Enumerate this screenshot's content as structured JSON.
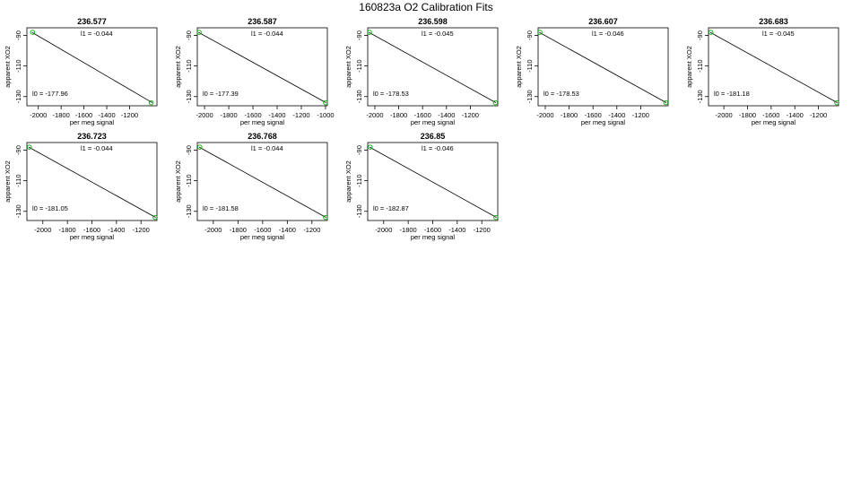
{
  "title": "160823a   O2 Calibration Fits",
  "chart_data": [
    {
      "type": "line",
      "title": "236.577",
      "xlabel": "per meg signal",
      "ylabel": "apparent XO2",
      "xlim": [
        -2100,
        -960
      ],
      "ylim": [
        -136,
        -85
      ],
      "xticks": [
        -2000,
        -1800,
        -1600,
        -1400,
        -1200
      ],
      "xtick_labels": [
        "-2000",
        "-1800",
        "-1600",
        "-1400",
        "-1200"
      ],
      "yticks": [
        -90,
        -110,
        -130
      ],
      "ytick_labels": [
        "-90",
        "-110",
        "-130"
      ],
      "l1_label": "l1 =  -0.044",
      "l0_label": "l0 =  -177.96",
      "x": [
        -2055,
        -1000
      ],
      "y": [
        -88,
        -134
      ],
      "points": [
        {
          "x": -2050,
          "y": -88,
          "color": "#00aa00"
        },
        {
          "x": -1010,
          "y": -134,
          "color": "#00aa00"
        }
      ]
    },
    {
      "type": "line",
      "title": "236.587",
      "xlabel": "per meg signal",
      "ylabel": "apparent XO2",
      "xlim": [
        -2060,
        -985
      ],
      "ylim": [
        -136,
        -85
      ],
      "xticks": [
        -2000,
        -1800,
        -1600,
        -1400,
        -1200,
        -1000
      ],
      "xtick_labels": [
        "-2000",
        "-1800",
        "-1600",
        "-1400",
        "-1200",
        "-1000"
      ],
      "yticks": [
        -90,
        -110,
        -130
      ],
      "ytick_labels": [
        "-90",
        "-110",
        "-130"
      ],
      "l1_label": "l1 =  -0.044",
      "l0_label": "l0 =  -177.39",
      "x": [
        -2050,
        -995
      ],
      "y": [
        -88,
        -134
      ],
      "points": [
        {
          "x": -2045,
          "y": -88,
          "color": "#00aa00"
        },
        {
          "x": -1000,
          "y": -134,
          "color": "#00aa00"
        }
      ]
    },
    {
      "type": "line",
      "title": "236.598",
      "xlabel": "per meg signal",
      "ylabel": "apparent XO2",
      "xlim": [
        -2060,
        -970
      ],
      "ylim": [
        -136,
        -85
      ],
      "xticks": [
        -2000,
        -1800,
        -1600,
        -1400,
        -1200
      ],
      "xtick_labels": [
        "-2000",
        "-1800",
        "-1600",
        "-1400",
        "-1200"
      ],
      "yticks": [
        -90,
        -110,
        -130
      ],
      "ytick_labels": [
        "-90",
        "-110",
        "-130"
      ],
      "l1_label": "l1 =  -0.045",
      "l0_label": "l0 =  -178.53",
      "x": [
        -2050,
        -985
      ],
      "y": [
        -88,
        -134
      ],
      "points": [
        {
          "x": -2045,
          "y": -88,
          "color": "#00aa00"
        },
        {
          "x": -990,
          "y": -134,
          "color": "#00aa00"
        }
      ]
    },
    {
      "type": "line",
      "title": "236.607",
      "xlabel": "per meg signal",
      "ylabel": "apparent XO2",
      "xlim": [
        -2060,
        -970
      ],
      "ylim": [
        -136,
        -85
      ],
      "xticks": [
        -2000,
        -1800,
        -1600,
        -1400,
        -1200
      ],
      "xtick_labels": [
        "-2000",
        "-1800",
        "-1600",
        "-1400",
        "-1200"
      ],
      "yticks": [
        -90,
        -110,
        -130
      ],
      "ytick_labels": [
        "-90",
        "-110",
        "-130"
      ],
      "l1_label": "l1 =  -0.046",
      "l0_label": "l0 =  -178.53",
      "x": [
        -2050,
        -985
      ],
      "y": [
        -88,
        -134
      ],
      "points": [
        {
          "x": -2045,
          "y": -88,
          "color": "#00aa00"
        },
        {
          "x": -990,
          "y": -134,
          "color": "#00aa00"
        }
      ]
    },
    {
      "type": "line",
      "title": "236.683",
      "xlabel": "per meg signal",
      "ylabel": "apparent XO2",
      "xlim": [
        -2130,
        -1030
      ],
      "ylim": [
        -136,
        -85
      ],
      "xticks": [
        -2000,
        -1800,
        -1600,
        -1400,
        -1200
      ],
      "xtick_labels": [
        "-2000",
        "-1800",
        "-1600",
        "-1400",
        "-1200"
      ],
      "yticks": [
        -90,
        -110,
        -130
      ],
      "ytick_labels": [
        "-90",
        "-110",
        "-130"
      ],
      "l1_label": "l1 =  -0.045",
      "l0_label": "l0 =  -181.18",
      "x": [
        -2115,
        -1040
      ],
      "y": [
        -88,
        -134
      ],
      "points": [
        {
          "x": -2110,
          "y": -88,
          "color": "#00aa00"
        },
        {
          "x": -1045,
          "y": -134,
          "color": "#00aa00"
        }
      ]
    },
    {
      "type": "line",
      "title": "236.723",
      "xlabel": "per meg signal",
      "ylabel": "apparent XO2",
      "xlim": [
        -2130,
        -1070
      ],
      "ylim": [
        -136,
        -85
      ],
      "xticks": [
        -2000,
        -1800,
        -1600,
        -1400,
        -1200
      ],
      "xtick_labels": [
        "-2000",
        "-1800",
        "-1600",
        "-1400",
        "-1200"
      ],
      "yticks": [
        -90,
        -110,
        -130
      ],
      "ytick_labels": [
        "-90",
        "-110",
        "-130"
      ],
      "l1_label": "l1 =  -0.044",
      "l0_label": "l0 =  -181.05",
      "x": [
        -2115,
        -1080
      ],
      "y": [
        -88,
        -134
      ],
      "points": [
        {
          "x": -2110,
          "y": -88,
          "color": "#00aa00"
        },
        {
          "x": -1085,
          "y": -134,
          "color": "#00aa00"
        }
      ]
    },
    {
      "type": "line",
      "title": "236.768",
      "xlabel": "per meg signal",
      "ylabel": "apparent XO2",
      "xlim": [
        -2130,
        -1075
      ],
      "ylim": [
        -136,
        -85
      ],
      "xticks": [
        -2000,
        -1800,
        -1600,
        -1400,
        -1200
      ],
      "xtick_labels": [
        "-2000",
        "-1800",
        "-1600",
        "-1400",
        "-1200"
      ],
      "yticks": [
        -90,
        -110,
        -130
      ],
      "ytick_labels": [
        "-90",
        "-110",
        "-130"
      ],
      "l1_label": "l1 =  -0.044",
      "l0_label": "l0 =  -181.58",
      "x": [
        -2115,
        -1085
      ],
      "y": [
        -88,
        -134
      ],
      "points": [
        {
          "x": -2110,
          "y": -88,
          "color": "#00aa00"
        },
        {
          "x": -1090,
          "y": -134,
          "color": "#00aa00"
        }
      ]
    },
    {
      "type": "line",
      "title": "236.85",
      "xlabel": "per meg signal",
      "ylabel": "apparent XO2",
      "xlim": [
        -2130,
        -1070
      ],
      "ylim": [
        -136,
        -85
      ],
      "xticks": [
        -2000,
        -1800,
        -1600,
        -1400,
        -1200
      ],
      "xtick_labels": [
        "-2000",
        "-1800",
        "-1600",
        "-1400",
        "-1200"
      ],
      "yticks": [
        -90,
        -110,
        -130
      ],
      "ytick_labels": [
        "-90",
        "-110",
        "-130"
      ],
      "l1_label": "l1 =  -0.046",
      "l0_label": "l0 =  -182.87",
      "x": [
        -2115,
        -1080
      ],
      "y": [
        -88,
        -134
      ],
      "points": [
        {
          "x": -2110,
          "y": -88,
          "color": "#00aa00"
        },
        {
          "x": -1085,
          "y": -134,
          "color": "#00aa00"
        }
      ]
    }
  ]
}
